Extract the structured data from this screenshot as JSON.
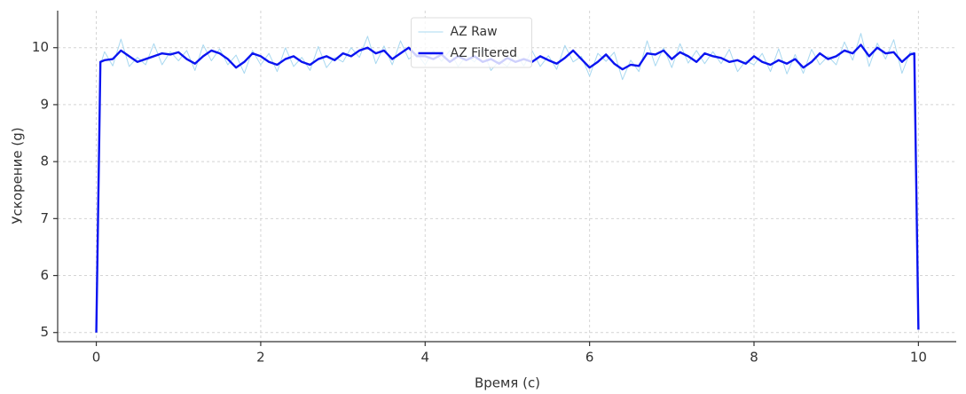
{
  "chart_data": {
    "type": "line",
    "xlabel": "Время (с)",
    "ylabel": "Ускорение (g)",
    "x": [
      0,
      0.05,
      0.1,
      0.2,
      0.3,
      0.4,
      0.5,
      0.6,
      0.7,
      0.8,
      0.9,
      1.0,
      1.1,
      1.2,
      1.3,
      1.4,
      1.5,
      1.6,
      1.7,
      1.8,
      1.9,
      2.0,
      2.1,
      2.2,
      2.3,
      2.4,
      2.5,
      2.6,
      2.7,
      2.8,
      2.9,
      3.0,
      3.1,
      3.2,
      3.3,
      3.4,
      3.5,
      3.6,
      3.7,
      3.8,
      3.9,
      4.0,
      4.1,
      4.2,
      4.3,
      4.4,
      4.5,
      4.6,
      4.7,
      4.8,
      4.9,
      5.0,
      5.1,
      5.2,
      5.3,
      5.4,
      5.5,
      5.6,
      5.7,
      5.8,
      5.9,
      6.0,
      6.1,
      6.2,
      6.3,
      6.4,
      6.5,
      6.6,
      6.7,
      6.8,
      6.9,
      7.0,
      7.1,
      7.2,
      7.3,
      7.4,
      7.5,
      7.6,
      7.7,
      7.8,
      7.9,
      8.0,
      8.1,
      8.2,
      8.3,
      8.4,
      8.5,
      8.6,
      8.7,
      8.8,
      8.9,
      9.0,
      9.1,
      9.2,
      9.3,
      9.4,
      9.5,
      9.6,
      9.7,
      9.8,
      9.9,
      9.95,
      10
    ],
    "series": [
      {
        "name": "AZ Raw",
        "color": "#a8d8f0",
        "width": 1,
        "values": [
          5.0,
          9.7,
          9.93,
          9.68,
          10.15,
          9.67,
          9.83,
          9.7,
          10.07,
          9.7,
          9.93,
          9.77,
          9.95,
          9.6,
          10.05,
          9.77,
          9.98,
          9.7,
          9.87,
          9.55,
          9.95,
          9.7,
          9.9,
          9.58,
          10.0,
          9.67,
          9.83,
          9.6,
          10.02,
          9.65,
          9.83,
          9.75,
          10.0,
          9.83,
          10.2,
          9.72,
          10.03,
          9.7,
          10.12,
          9.8,
          9.9,
          9.7,
          9.95,
          9.76,
          9.95,
          9.67,
          9.86,
          9.75,
          9.97,
          9.6,
          9.77,
          9.67,
          9.9,
          9.68,
          9.95,
          9.67,
          9.86,
          9.62,
          10.04,
          9.75,
          9.85,
          9.5,
          9.9,
          9.76,
          9.92,
          9.44,
          9.78,
          9.58,
          10.12,
          9.68,
          10.0,
          9.65,
          10.07,
          9.73,
          9.95,
          9.72,
          9.93,
          9.72,
          9.97,
          9.58,
          9.77,
          9.7,
          9.9,
          9.58,
          9.98,
          9.54,
          9.88,
          9.55,
          9.97,
          9.7,
          9.85,
          9.7,
          10.1,
          9.78,
          10.25,
          9.67,
          10.08,
          9.8,
          10.14,
          9.55,
          9.93,
          9.85,
          5.05
        ]
      },
      {
        "name": "AZ Filtered",
        "color": "#0a14f0",
        "width": 2.4,
        "values": [
          5.0,
          9.75,
          9.78,
          9.8,
          9.95,
          9.85,
          9.75,
          9.8,
          9.85,
          9.9,
          9.88,
          9.92,
          9.8,
          9.72,
          9.85,
          9.95,
          9.9,
          9.8,
          9.65,
          9.75,
          9.9,
          9.85,
          9.75,
          9.7,
          9.8,
          9.85,
          9.75,
          9.7,
          9.8,
          9.85,
          9.78,
          9.9,
          9.85,
          9.95,
          10.0,
          9.9,
          9.95,
          9.8,
          9.9,
          10.0,
          9.85,
          9.85,
          9.8,
          9.88,
          9.75,
          9.85,
          9.78,
          9.85,
          9.75,
          9.8,
          9.72,
          9.82,
          9.75,
          9.8,
          9.75,
          9.85,
          9.78,
          9.72,
          9.82,
          9.95,
          9.8,
          9.65,
          9.75,
          9.88,
          9.72,
          9.62,
          9.7,
          9.68,
          9.9,
          9.88,
          9.95,
          9.8,
          9.92,
          9.85,
          9.75,
          9.9,
          9.85,
          9.82,
          9.75,
          9.78,
          9.72,
          9.85,
          9.75,
          9.7,
          9.78,
          9.72,
          9.8,
          9.65,
          9.75,
          9.9,
          9.8,
          9.85,
          9.95,
          9.9,
          10.05,
          9.85,
          10.0,
          9.9,
          9.92,
          9.75,
          9.88,
          9.9,
          5.05
        ]
      }
    ],
    "xlim": [
      -0.47,
      10.46
    ],
    "ylim": [
      4.84,
      10.65
    ],
    "xticks": [
      0,
      2,
      4,
      6,
      8,
      10
    ],
    "yticks": [
      5,
      6,
      7,
      8,
      9,
      10
    ],
    "grid": true,
    "legend": "upper center"
  }
}
